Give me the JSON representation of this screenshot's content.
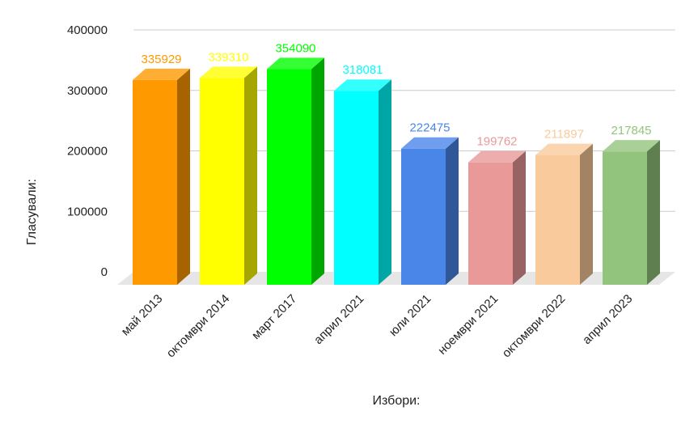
{
  "chart_data": {
    "type": "bar",
    "style": "3d",
    "categories": [
      "май 2013",
      "октомври 2014",
      "март 2017",
      "април 2021",
      "юли 2021",
      "ноември 2021",
      "октомври 2022",
      "април 2023"
    ],
    "values": [
      335929,
      339310,
      354090,
      318081,
      222475,
      199762,
      211897,
      217845
    ],
    "value_labels": [
      "335929",
      "339310",
      "354090",
      "318081",
      "222475",
      "199762",
      "211897",
      "217845"
    ],
    "colors": [
      "#ff9900",
      "#ffff00",
      "#00ff00",
      "#00ffff",
      "#4a86e8",
      "#ea9999",
      "#f9cb9c",
      "#93c47d"
    ],
    "title": "",
    "xlabel": "Избори:",
    "ylabel": "Гласували:",
    "ylim": [
      0,
      400000
    ],
    "yticks": [
      "0",
      "100000",
      "200000",
      "300000",
      "400000"
    ],
    "grid": true,
    "legend": "none"
  }
}
